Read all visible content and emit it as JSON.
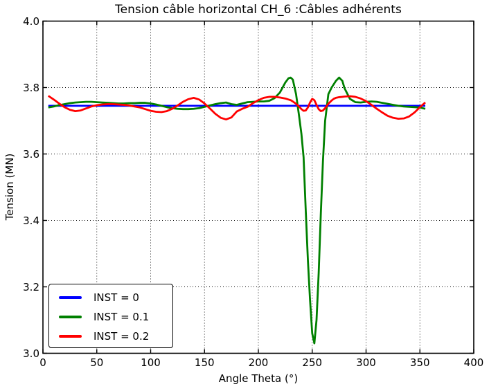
{
  "figure": {
    "background_color": "#ffffff",
    "spine_color": "#000000",
    "grid_color": "#000000"
  },
  "chart_data": {
    "type": "line",
    "title": "Tension câble horizontal CH_6 :Câbles adhérents",
    "xlabel": "Angle Theta (°)",
    "ylabel": "Tension (MN)",
    "xlim": [
      0,
      400
    ],
    "ylim": [
      3.0,
      4.0
    ],
    "xticks": [
      0,
      50,
      100,
      150,
      200,
      250,
      300,
      350,
      400
    ],
    "yticks": [
      3.0,
      3.2,
      3.4,
      3.6,
      3.8,
      4.0
    ],
    "xtick_labels": [
      "0",
      "50",
      "100",
      "150",
      "200",
      "250",
      "300",
      "350",
      "400"
    ],
    "ytick_labels": [
      "3.0",
      "3.2",
      "3.4",
      "3.6",
      "3.8",
      "4.0"
    ],
    "grid": true,
    "grid_style": "dotted",
    "legend_position": "lower-left",
    "x": [
      5,
      10,
      15,
      20,
      25,
      30,
      35,
      40,
      45,
      50,
      55,
      60,
      65,
      70,
      75,
      80,
      85,
      90,
      95,
      100,
      105,
      110,
      115,
      120,
      125,
      130,
      135,
      140,
      145,
      150,
      155,
      160,
      165,
      170,
      175,
      180,
      185,
      190,
      195,
      200,
      205,
      210,
      215,
      220,
      225,
      228,
      230,
      232,
      235,
      238,
      240,
      242,
      244,
      246,
      248,
      250,
      252,
      254,
      256,
      258,
      260,
      262,
      265,
      268,
      270,
      272,
      275,
      278,
      280,
      285,
      290,
      295,
      300,
      305,
      310,
      315,
      320,
      325,
      330,
      335,
      340,
      345,
      350,
      355
    ],
    "series": [
      {
        "name": "INST = 0",
        "color": "#0000ff",
        "x": [
          5,
          355
        ],
        "values": [
          3.745,
          3.745
        ]
      },
      {
        "name": "INST = 0.1",
        "color": "#008000",
        "values": [
          3.74,
          3.743,
          3.747,
          3.75,
          3.753,
          3.755,
          3.756,
          3.757,
          3.757,
          3.756,
          3.755,
          3.754,
          3.753,
          3.752,
          3.752,
          3.753,
          3.753,
          3.754,
          3.754,
          3.752,
          3.749,
          3.745,
          3.741,
          3.738,
          3.736,
          3.735,
          3.735,
          3.736,
          3.738,
          3.742,
          3.746,
          3.75,
          3.753,
          3.755,
          3.75,
          3.748,
          3.752,
          3.756,
          3.757,
          3.758,
          3.758,
          3.76,
          3.768,
          3.785,
          3.815,
          3.828,
          3.83,
          3.824,
          3.78,
          3.71,
          3.66,
          3.59,
          3.43,
          3.28,
          3.16,
          3.06,
          3.03,
          3.1,
          3.24,
          3.42,
          3.58,
          3.7,
          3.78,
          3.8,
          3.81,
          3.82,
          3.83,
          3.82,
          3.798,
          3.766,
          3.756,
          3.755,
          3.757,
          3.758,
          3.757,
          3.754,
          3.751,
          3.748,
          3.745,
          3.743,
          3.742,
          3.741,
          3.74,
          3.736
        ]
      },
      {
        "name": "INST = 0.2",
        "color": "#ff0000",
        "values": [
          3.775,
          3.764,
          3.752,
          3.741,
          3.733,
          3.729,
          3.731,
          3.737,
          3.743,
          3.747,
          3.749,
          3.75,
          3.75,
          3.749,
          3.748,
          3.746,
          3.743,
          3.74,
          3.735,
          3.73,
          3.727,
          3.726,
          3.729,
          3.736,
          3.746,
          3.757,
          3.765,
          3.769,
          3.764,
          3.752,
          3.737,
          3.721,
          3.709,
          3.704,
          3.71,
          3.728,
          3.736,
          3.742,
          3.753,
          3.762,
          3.769,
          3.772,
          3.772,
          3.77,
          3.767,
          3.764,
          3.762,
          3.758,
          3.751,
          3.742,
          3.735,
          3.73,
          3.731,
          3.74,
          3.755,
          3.766,
          3.762,
          3.748,
          3.735,
          3.729,
          3.731,
          3.738,
          3.751,
          3.761,
          3.766,
          3.769,
          3.771,
          3.772,
          3.773,
          3.774,
          3.772,
          3.767,
          3.759,
          3.748,
          3.736,
          3.725,
          3.715,
          3.709,
          3.706,
          3.707,
          3.713,
          3.725,
          3.741,
          3.755
        ]
      }
    ]
  }
}
